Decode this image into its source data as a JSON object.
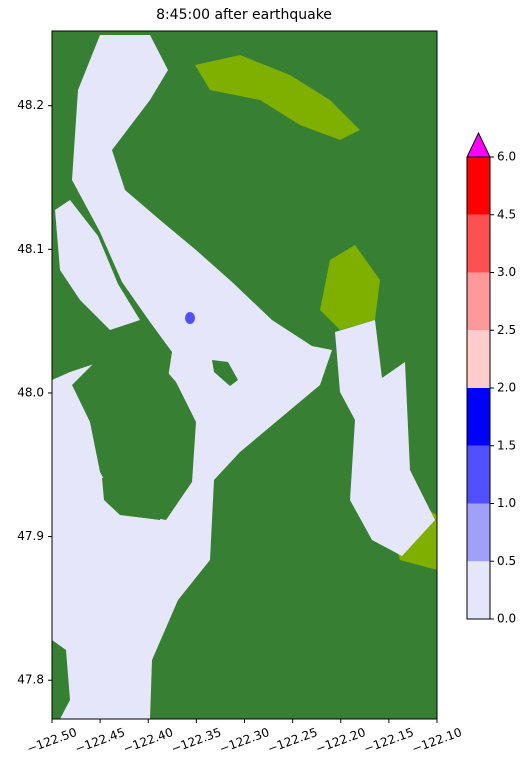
{
  "chart_data": {
    "type": "map",
    "title": "8:45:00 after earthquake",
    "xlim": [
      -122.5,
      -122.1
    ],
    "ylim": [
      47.773,
      48.252
    ],
    "xticks": [
      {
        "value": -122.5,
        "label": "−122.50"
      },
      {
        "value": -122.45,
        "label": "−122.45"
      },
      {
        "value": -122.4,
        "label": "−122.40"
      },
      {
        "value": -122.35,
        "label": "−122.35"
      },
      {
        "value": -122.3,
        "label": "−122.30"
      },
      {
        "value": -122.25,
        "label": "−122.25"
      },
      {
        "value": -122.2,
        "label": "−122.20"
      },
      {
        "value": -122.15,
        "label": "−122.15"
      },
      {
        "value": -122.1,
        "label": "−122.10"
      }
    ],
    "yticks": [
      47.8,
      47.9,
      {
        "value": 48.0,
        "label": "48.0"
      },
      48.1,
      48.2
    ],
    "colorbar": {
      "boundaries": [
        0,
        0.5,
        1,
        1.5,
        2,
        2.5,
        3,
        4.5,
        6
      ],
      "ticks": [
        {
          "value": 0,
          "label": "0.0"
        },
        0.5,
        {
          "value": 1,
          "label": "1.0"
        },
        1.5,
        {
          "value": 2,
          "label": "2.0"
        },
        2.5,
        {
          "value": 3,
          "label": "3.0"
        },
        4.5,
        {
          "value": 6,
          "label": "6.0"
        }
      ],
      "colors": [
        "#e6e6fa",
        "#a0a0fa",
        "#5050ff",
        "#0000ff",
        "#ffcccc",
        "#ff9999",
        "#ff5050",
        "#ff0000"
      ],
      "extend_color": "#ff00ff"
    }
  }
}
